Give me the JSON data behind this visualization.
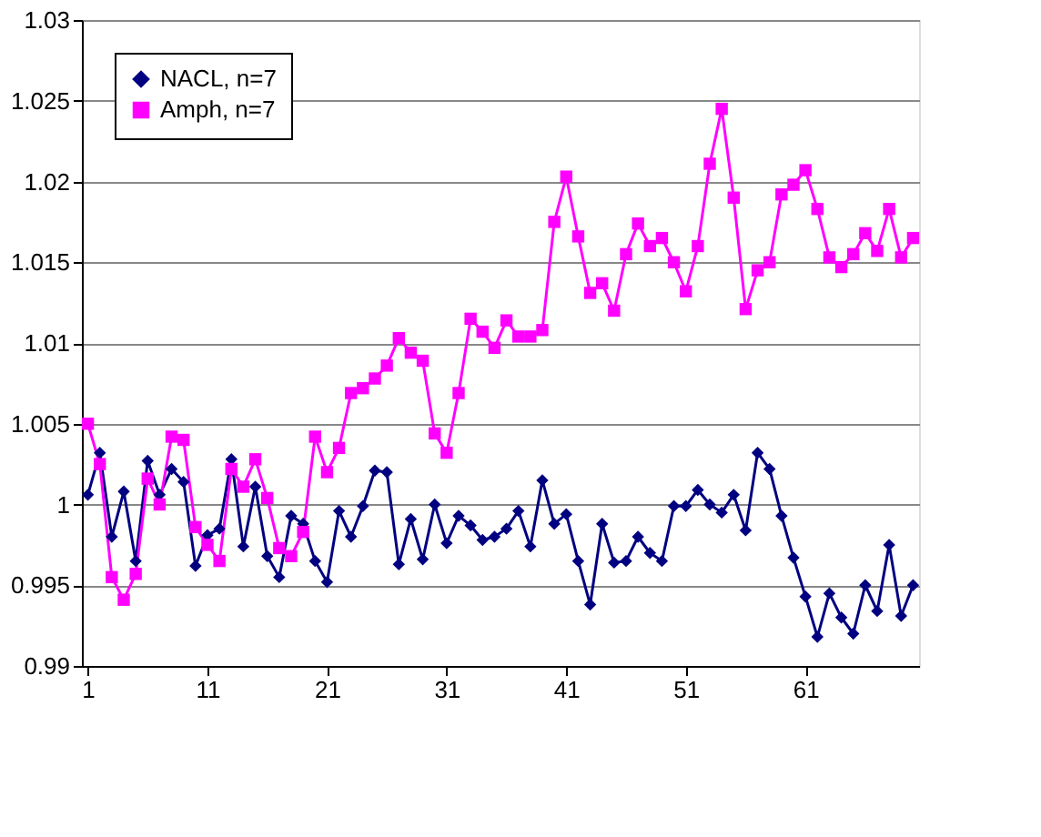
{
  "chart_data": {
    "type": "line",
    "x": [
      1,
      2,
      3,
      4,
      5,
      6,
      7,
      8,
      9,
      10,
      11,
      12,
      13,
      14,
      15,
      16,
      17,
      18,
      19,
      20,
      21,
      22,
      23,
      24,
      25,
      26,
      27,
      28,
      29,
      30,
      31,
      32,
      33,
      34,
      35,
      36,
      37,
      38,
      39,
      40,
      41,
      42,
      43,
      44,
      45,
      46,
      47,
      48,
      49,
      50,
      51,
      52,
      53,
      54,
      55,
      56,
      57,
      58,
      59,
      60,
      61,
      62,
      63,
      64,
      65,
      66,
      67,
      68,
      69,
      70
    ],
    "series": [
      {
        "name": "NACL, n=7",
        "color": "#000080",
        "marker": "diamond",
        "values": [
          1.0006,
          1.0032,
          0.998,
          1.0008,
          0.9965,
          1.0027,
          1.0006,
          1.0022,
          1.0014,
          0.9962,
          0.9981,
          0.9985,
          1.0028,
          0.9974,
          1.0011,
          0.9968,
          0.9955,
          0.9993,
          0.9988,
          0.9965,
          0.9952,
          0.9996,
          0.998,
          0.9999,
          1.0021,
          1.002,
          0.9963,
          0.9991,
          0.9966,
          1.0,
          0.9976,
          0.9993,
          0.9987,
          0.9978,
          0.998,
          0.9985,
          0.9996,
          0.9974,
          1.0015,
          0.9988,
          0.9994,
          0.9965,
          0.9938,
          0.9988,
          0.9964,
          0.9965,
          0.998,
          0.997,
          0.9965,
          0.9999,
          0.9999,
          1.0009,
          1.0,
          0.9995,
          1.0006,
          0.9984,
          1.0032,
          1.0022,
          0.9993,
          0.9967,
          0.9943,
          0.9918,
          0.9945,
          0.993,
          0.992,
          0.995,
          0.9934,
          0.9975,
          0.9931,
          0.995
        ]
      },
      {
        "name": "Amph, n=7",
        "color": "#ff00ff",
        "marker": "square",
        "values": [
          1.005,
          1.0025,
          0.9955,
          0.9941,
          0.9957,
          1.0016,
          1.0,
          1.0042,
          1.004,
          0.9986,
          0.9975,
          0.9965,
          1.0022,
          1.0011,
          1.0028,
          1.0004,
          0.9973,
          0.9968,
          0.9983,
          1.0042,
          1.002,
          1.0035,
          1.0069,
          1.0072,
          1.0078,
          1.0086,
          1.0103,
          1.0094,
          1.0089,
          1.0044,
          1.0032,
          1.0069,
          1.0115,
          1.0107,
          1.0097,
          1.0114,
          1.0104,
          1.0104,
          1.0108,
          1.0175,
          1.0203,
          1.0166,
          1.0131,
          1.0137,
          1.012,
          1.0155,
          1.0174,
          1.016,
          1.0165,
          1.015,
          1.0132,
          1.016,
          1.0211,
          1.0245,
          1.019,
          1.0121,
          1.0145,
          1.015,
          1.0192,
          1.0198,
          1.0207,
          1.0183,
          1.0153,
          1.0147,
          1.0155,
          1.0168,
          1.0157,
          1.0183,
          1.0153,
          1.0165
        ]
      }
    ],
    "xlim": [
      0.5,
      70.5
    ],
    "xticks": [
      1,
      11,
      21,
      31,
      41,
      51,
      61
    ],
    "ylim": [
      0.99,
      1.03
    ],
    "yticks": [
      0.99,
      0.995,
      1,
      1.005,
      1.01,
      1.015,
      1.02,
      1.025,
      1.03
    ],
    "grid": "y",
    "legend": "top left",
    "line_style": "solid"
  }
}
